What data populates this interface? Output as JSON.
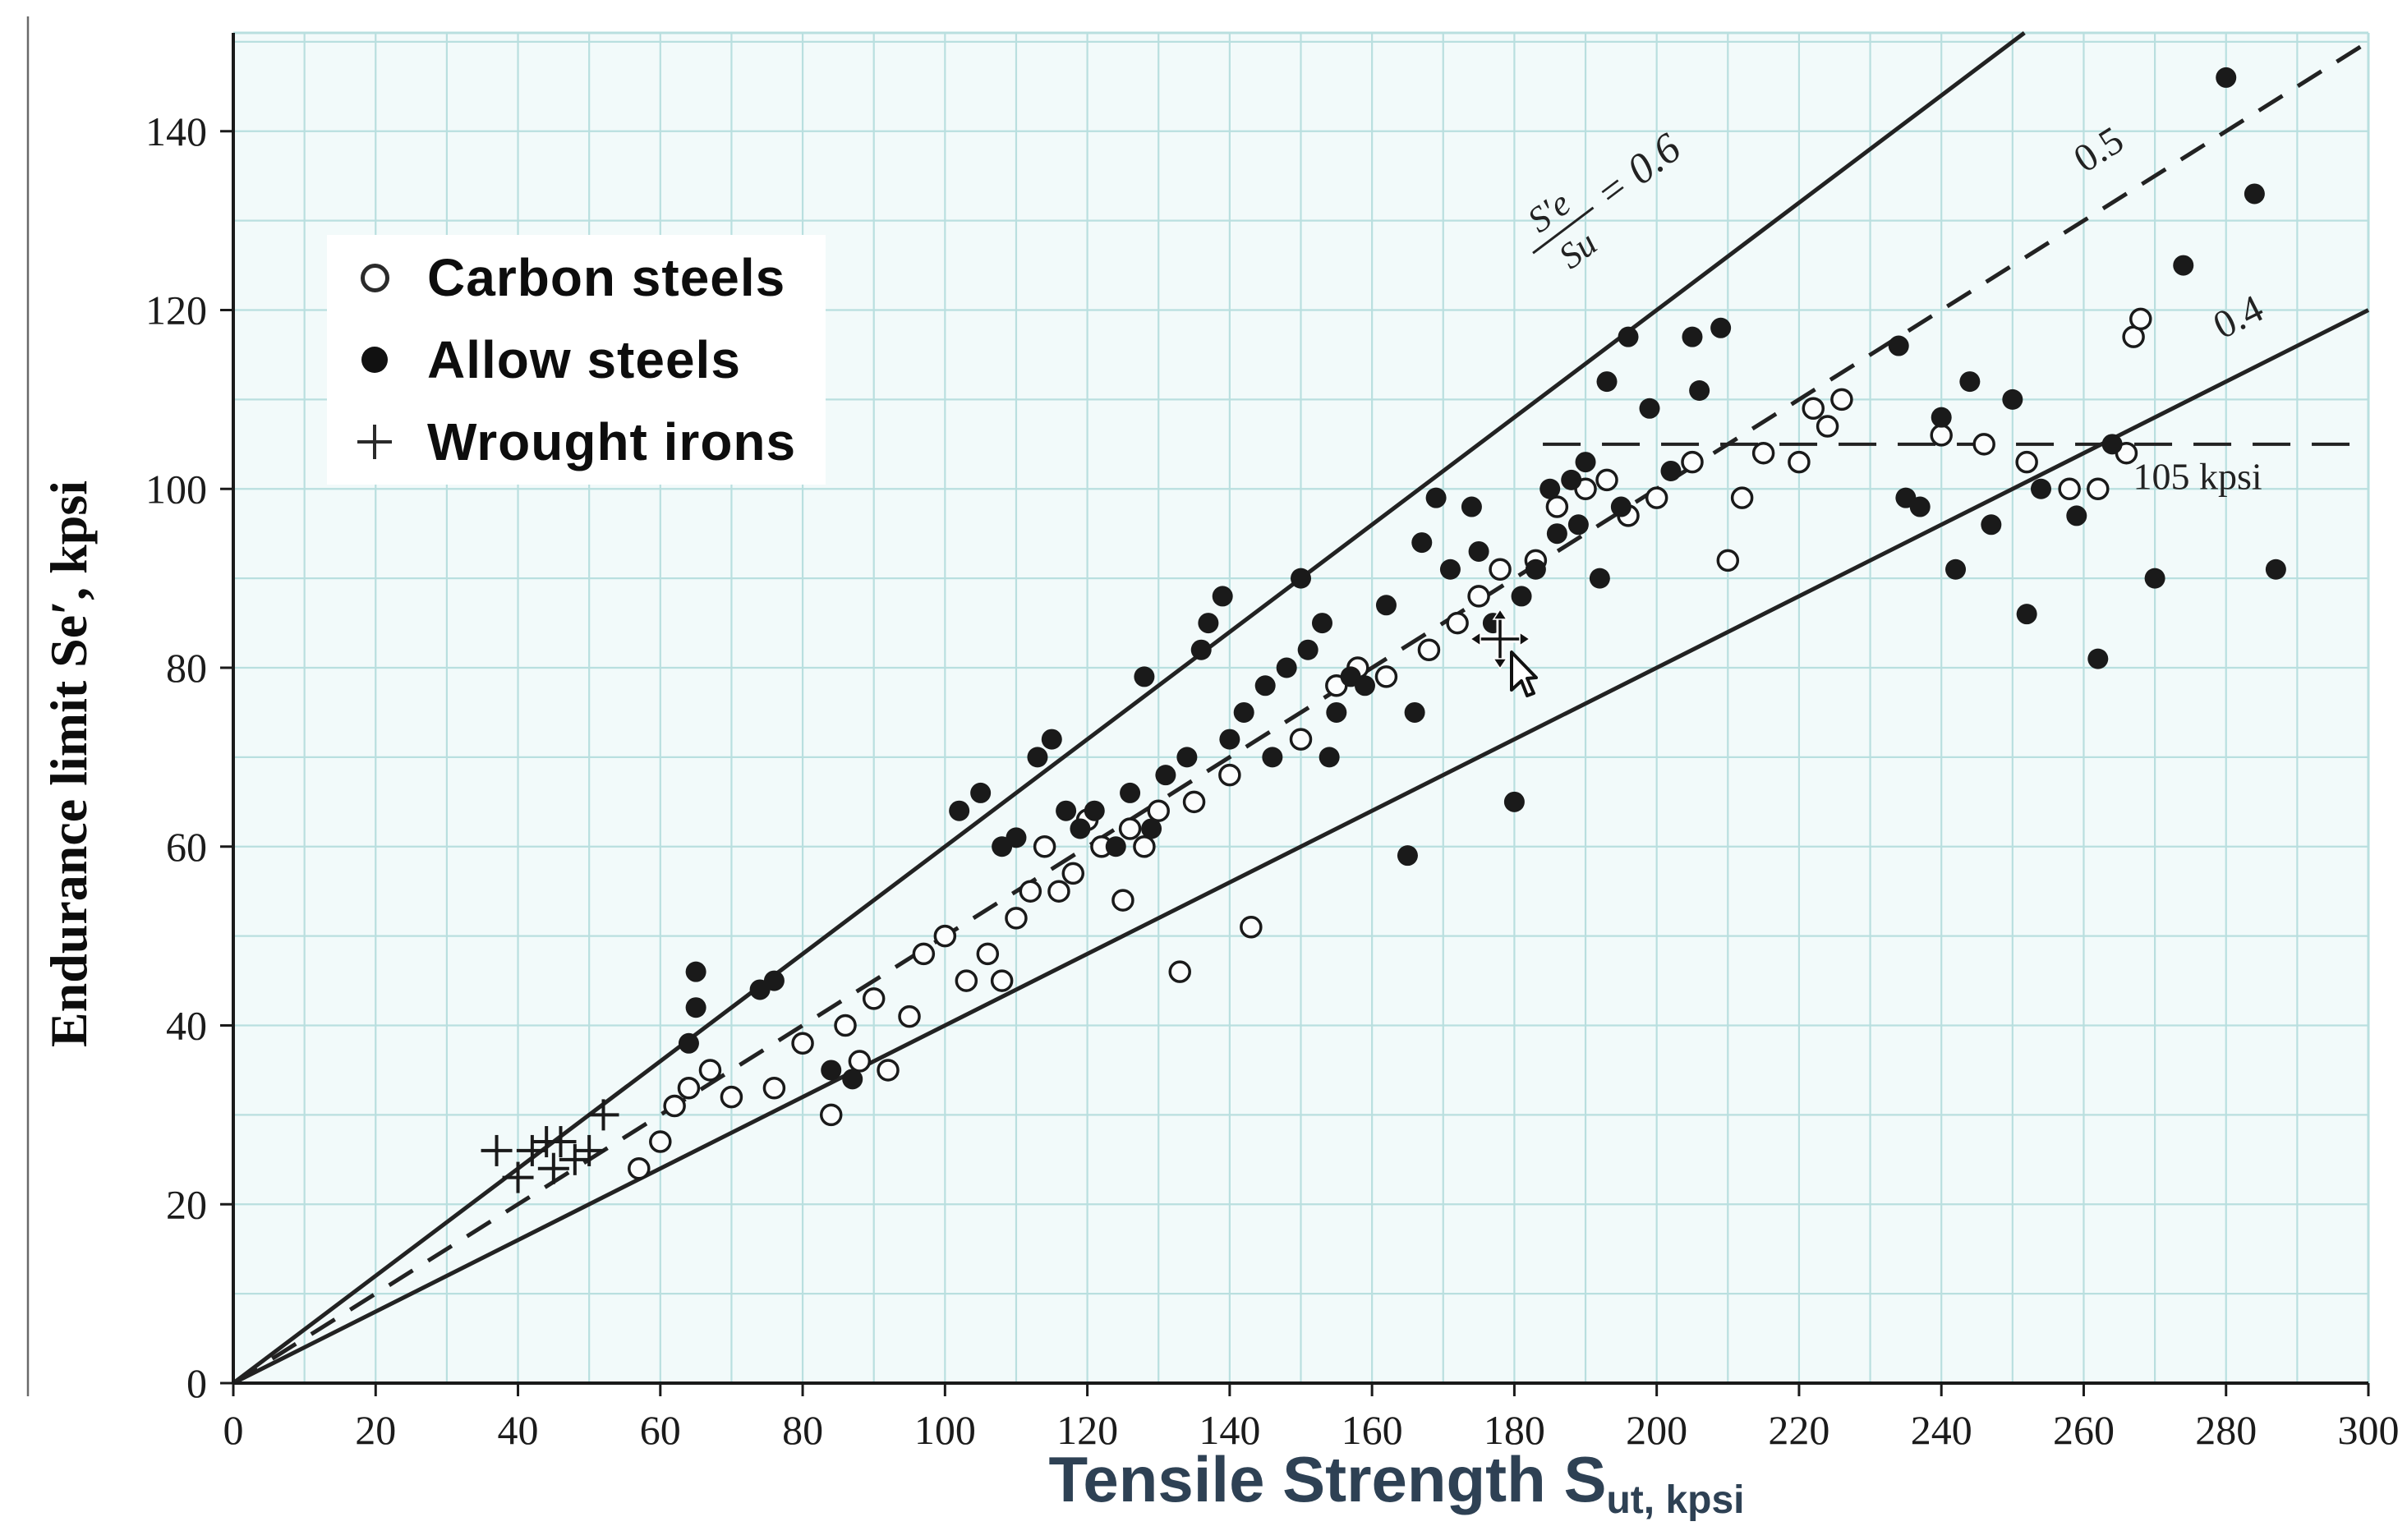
{
  "chart_data": {
    "type": "scatter",
    "title": "",
    "xlabel": {
      "text": "Tensile Strength",
      "symbol": "S",
      "subscript": "ut, kpsi"
    },
    "ylabel": "Endurance limit Se′, kpsi",
    "xlim": [
      0,
      300
    ],
    "ylim": [
      0,
      151
    ],
    "xticks": [
      0,
      20,
      40,
      60,
      80,
      100,
      120,
      140,
      160,
      180,
      200,
      220,
      240,
      260,
      280,
      300
    ],
    "yticks": [
      0,
      20,
      40,
      60,
      80,
      100,
      120,
      140
    ],
    "grid_step": 10,
    "grid": true,
    "legend_position": "top-left",
    "series": [
      {
        "name": "Carbon steels",
        "marker": "open-circle",
        "points": [
          [
            57,
            24
          ],
          [
            60,
            27
          ],
          [
            62,
            31
          ],
          [
            64,
            33
          ],
          [
            67,
            35
          ],
          [
            70,
            32
          ],
          [
            76,
            33
          ],
          [
            80,
            38
          ],
          [
            84,
            30
          ],
          [
            86,
            40
          ],
          [
            88,
            36
          ],
          [
            90,
            43
          ],
          [
            92,
            35
          ],
          [
            95,
            41
          ],
          [
            97,
            48
          ],
          [
            100,
            50
          ],
          [
            103,
            45
          ],
          [
            106,
            48
          ],
          [
            108,
            45
          ],
          [
            110,
            52
          ],
          [
            112,
            55
          ],
          [
            114,
            60
          ],
          [
            116,
            55
          ],
          [
            118,
            57
          ],
          [
            120,
            63
          ],
          [
            122,
            60
          ],
          [
            125,
            54
          ],
          [
            126,
            62
          ],
          [
            128,
            60
          ],
          [
            130,
            64
          ],
          [
            133,
            46
          ],
          [
            135,
            65
          ],
          [
            140,
            68
          ],
          [
            143,
            51
          ],
          [
            150,
            72
          ],
          [
            155,
            78
          ],
          [
            158,
            80
          ],
          [
            162,
            79
          ],
          [
            168,
            82
          ],
          [
            172,
            85
          ],
          [
            175,
            88
          ],
          [
            178,
            91
          ],
          [
            183,
            92
          ],
          [
            186,
            98
          ],
          [
            190,
            100
          ],
          [
            193,
            101
          ],
          [
            196,
            97
          ],
          [
            200,
            99
          ],
          [
            205,
            103
          ],
          [
            210,
            92
          ],
          [
            212,
            99
          ],
          [
            215,
            104
          ],
          [
            220,
            103
          ],
          [
            222,
            109
          ],
          [
            224,
            107
          ],
          [
            226,
            110
          ],
          [
            240,
            106
          ],
          [
            246,
            105
          ],
          [
            252,
            103
          ],
          [
            258,
            100
          ],
          [
            262,
            100
          ],
          [
            266,
            104
          ],
          [
            267,
            117
          ],
          [
            268,
            119
          ]
        ]
      },
      {
        "name": "Allow steels",
        "marker": "filled-circle",
        "points": [
          [
            64,
            38
          ],
          [
            65,
            42
          ],
          [
            65,
            46
          ],
          [
            74,
            44
          ],
          [
            76,
            45
          ],
          [
            84,
            35
          ],
          [
            87,
            34
          ],
          [
            102,
            64
          ],
          [
            105,
            66
          ],
          [
            108,
            60
          ],
          [
            110,
            61
          ],
          [
            113,
            70
          ],
          [
            115,
            72
          ],
          [
            117,
            64
          ],
          [
            119,
            62
          ],
          [
            121,
            64
          ],
          [
            124,
            60
          ],
          [
            126,
            66
          ],
          [
            128,
            79
          ],
          [
            129,
            62
          ],
          [
            131,
            68
          ],
          [
            134,
            70
          ],
          [
            136,
            82
          ],
          [
            137,
            85
          ],
          [
            139,
            88
          ],
          [
            140,
            72
          ],
          [
            142,
            75
          ],
          [
            145,
            78
          ],
          [
            146,
            70
          ],
          [
            148,
            80
          ],
          [
            150,
            90
          ],
          [
            151,
            82
          ],
          [
            153,
            85
          ],
          [
            154,
            70
          ],
          [
            155,
            75
          ],
          [
            157,
            79
          ],
          [
            159,
            78
          ],
          [
            162,
            87
          ],
          [
            165,
            59
          ],
          [
            166,
            75
          ],
          [
            167,
            94
          ],
          [
            169,
            99
          ],
          [
            171,
            91
          ],
          [
            174,
            98
          ],
          [
            175,
            93
          ],
          [
            177,
            85
          ],
          [
            180,
            65
          ],
          [
            181,
            88
          ],
          [
            183,
            91
          ],
          [
            185,
            100
          ],
          [
            186,
            95
          ],
          [
            188,
            101
          ],
          [
            189,
            96
          ],
          [
            190,
            103
          ],
          [
            192,
            90
          ],
          [
            193,
            112
          ],
          [
            195,
            98
          ],
          [
            196,
            117
          ],
          [
            199,
            109
          ],
          [
            202,
            102
          ],
          [
            205,
            117
          ],
          [
            206,
            111
          ],
          [
            209,
            118
          ],
          [
            234,
            116
          ],
          [
            235,
            99
          ],
          [
            237,
            98
          ],
          [
            240,
            108
          ],
          [
            242,
            91
          ],
          [
            244,
            112
          ],
          [
            247,
            96
          ],
          [
            250,
            110
          ],
          [
            252,
            86
          ],
          [
            254,
            100
          ],
          [
            259,
            97
          ],
          [
            262,
            81
          ],
          [
            264,
            105
          ],
          [
            270,
            90
          ],
          [
            274,
            125
          ],
          [
            280,
            146
          ],
          [
            284,
            133
          ],
          [
            287,
            91
          ]
        ]
      },
      {
        "name": "Wrought irons",
        "marker": "plus",
        "points": [
          [
            37,
            26
          ],
          [
            40,
            23
          ],
          [
            42,
            26
          ],
          [
            44,
            27
          ],
          [
            45,
            24
          ],
          [
            46,
            27
          ],
          [
            48,
            25
          ],
          [
            50,
            26
          ],
          [
            52,
            30
          ]
        ]
      }
    ],
    "ref_lines": [
      {
        "kind": "slope",
        "slope": 0.6,
        "style": "solid",
        "label": {
          "numerator": "S′e",
          "denominator": "Su",
          "suffix": "= 0.6"
        },
        "label_x": 197
      },
      {
        "kind": "slope",
        "slope": 0.5,
        "style": "dashed",
        "label": {
          "text": "0.5"
        },
        "label_x": 266
      },
      {
        "kind": "slope",
        "slope": 0.4,
        "style": "solid",
        "label": {
          "text": "0.4"
        },
        "label_x": 285
      },
      {
        "kind": "horizontal",
        "y": 105,
        "x_start": 184,
        "style": "dashed",
        "label": {
          "text": "105 kpsi"
        },
        "label_at": [
          276,
          100
        ]
      }
    ]
  },
  "colors": {
    "plot_background": "#f2fafa",
    "grid": "#b9dfdf",
    "axis": "#1a1a1a",
    "line": "#222222",
    "marker": "#1a1a1a",
    "x_title": "#2e4154"
  }
}
